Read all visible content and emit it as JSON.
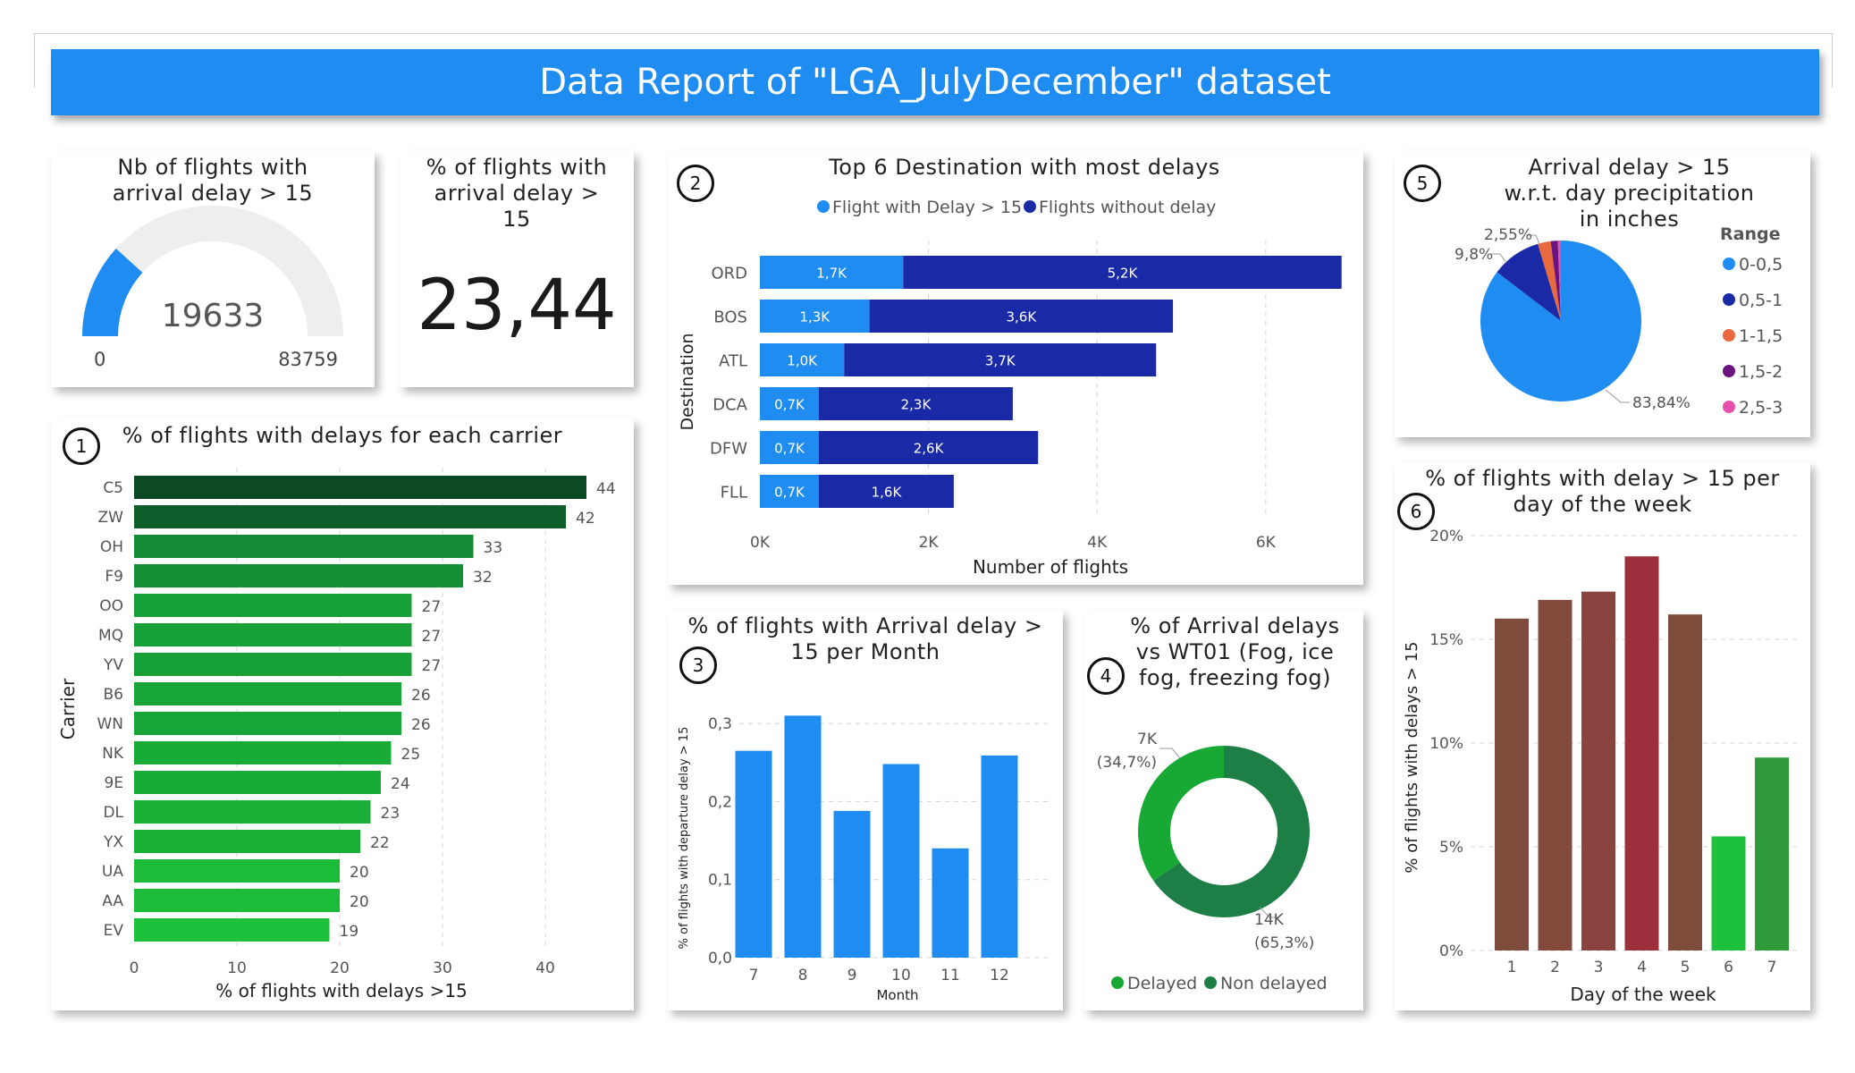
{
  "header": {
    "title": "Data Report of \"LGA_JulyDecember\" dataset"
  },
  "gauge": {
    "title": "Nb of flights with arrival delay > 15",
    "value": "19633",
    "min": "0",
    "max": "83759",
    "fraction": 0.2344
  },
  "kpi": {
    "title": "% of flights with arrival delay > 15",
    "value": "23,44"
  },
  "badges": {
    "b1": "1",
    "b2": "2",
    "b3": "3",
    "b4": "4",
    "b5": "5",
    "b6": "6"
  },
  "carrier": {
    "title": "% of flights with delays for each carrier",
    "xlabel": "% of flights with delays >15",
    "ylabel": "Carrier"
  },
  "dest": {
    "title": "Top 6 Destination with most delays",
    "xlabel": "Number of flights",
    "ylabel": "Destination",
    "legend1": "Flight with Delay > 15",
    "legend2": "Flights without delay"
  },
  "precip": {
    "title": "Arrival delay > 15 w.r.t. day precipitation in inches",
    "legend_title": "Range"
  },
  "month": {
    "title": "% of flights with Arrival delay > 15 per Month",
    "xlabel": "Month",
    "ylabel": "% of flights with departure delay > 15"
  },
  "fog": {
    "title": "% of Arrival delays vs WT01 (Fog, ice fog, freezing fog)",
    "legend1": "Delayed",
    "legend2": "Non delayed"
  },
  "dow": {
    "title": "% of flights with delay > 15 per day of the week",
    "xlabel": "Day of the week",
    "ylabel": "% of flights with delays > 15"
  },
  "chart_data": [
    {
      "id": "carrier",
      "type": "bar",
      "orientation": "horizontal",
      "categories": [
        "C5",
        "ZW",
        "OH",
        "F9",
        "OO",
        "MQ",
        "YV",
        "B6",
        "WN",
        "NK",
        "9E",
        "DL",
        "YX",
        "UA",
        "AA",
        "EV"
      ],
      "values": [
        44,
        42,
        33,
        32,
        27,
        27,
        27,
        26,
        26,
        25,
        24,
        23,
        22,
        20,
        20,
        19
      ],
      "labels": [
        "44",
        "42",
        "33",
        "32",
        "27",
        "27",
        "27",
        "26",
        "26",
        "25",
        "24",
        "23",
        "22",
        "20",
        "20",
        "19"
      ],
      "xticks": [
        "0",
        "10",
        "20",
        "30",
        "40"
      ],
      "xlim": [
        0,
        50
      ],
      "colors": [
        "#0b4a24",
        "#0e5d2b",
        "#138a33",
        "#158f35",
        "#17a035",
        "#17a035",
        "#17a035",
        "#18a537",
        "#18a537",
        "#19ab38",
        "#19ab38",
        "#1ab038",
        "#1ab038",
        "#1cbc3a",
        "#1cbc3a",
        "#1dc13b"
      ],
      "grid": true
    },
    {
      "id": "dest",
      "type": "bar",
      "orientation": "horizontal",
      "stacked": true,
      "categories": [
        "ORD",
        "BOS",
        "ATL",
        "DCA",
        "DFW",
        "FLL"
      ],
      "series": [
        {
          "name": "Flight with Delay > 15",
          "values": [
            1.7,
            1.3,
            1.0,
            0.7,
            0.7,
            0.7
          ],
          "labels": [
            "1,7K",
            "1,3K",
            "1,0K",
            "0,7K",
            "0,7K",
            "0,7K"
          ],
          "color": "#1e8cf0"
        },
        {
          "name": "Flights without delay",
          "values": [
            5.2,
            3.6,
            3.7,
            2.3,
            2.6,
            1.6
          ],
          "labels": [
            "5,2K",
            "3,6K",
            "3,7K",
            "2,3K",
            "2,6K",
            "1,6K"
          ],
          "color": "#1a2aa6"
        }
      ],
      "xticks": [
        "0K",
        "2K",
        "4K",
        "6K"
      ],
      "xlim": [
        0,
        7
      ],
      "grid": true
    },
    {
      "id": "precip",
      "type": "pie",
      "categories": [
        "0-0,5",
        "0,5-1",
        "1-1,5",
        "1,5-2",
        "2,5-3"
      ],
      "values": [
        83.84,
        9.8,
        2.55,
        1.4,
        0.6
      ],
      "labels": [
        "83,84%",
        "9,8%",
        "2,55%"
      ],
      "colors": [
        "#1e8cf0",
        "#1a2aa6",
        "#e8693e",
        "#6b1380",
        "#e54fae"
      ],
      "legend": "right"
    },
    {
      "id": "month",
      "type": "bar",
      "categories": [
        "7",
        "8",
        "9",
        "10",
        "11",
        "12"
      ],
      "values": [
        0.265,
        0.31,
        0.188,
        0.248,
        0.14,
        0.259
      ],
      "yticks": [
        "0,0",
        "0,1",
        "0,2",
        "0,3"
      ],
      "ylim": [
        0,
        0.33
      ],
      "color": "#1e8cf0",
      "grid": true
    },
    {
      "id": "fog",
      "type": "pie",
      "donut": true,
      "categories": [
        "Delayed",
        "Non delayed"
      ],
      "values": [
        34.7,
        65.3
      ],
      "labels": [
        "7K",
        "(34,7%)",
        "14K",
        "(65,3%)"
      ],
      "colors": [
        "#18a935",
        "#1d7f45"
      ],
      "legend": "bottom"
    },
    {
      "id": "dow",
      "type": "bar",
      "categories": [
        "1",
        "2",
        "3",
        "4",
        "5",
        "6",
        "7"
      ],
      "values": [
        16.0,
        16.9,
        17.3,
        19.0,
        16.2,
        5.5,
        9.3
      ],
      "yticks": [
        "0%",
        "5%",
        "10%",
        "15%",
        "20%"
      ],
      "ylim": [
        0,
        20
      ],
      "colors": [
        "#7d4c3a",
        "#834a3b",
        "#8a4440",
        "#9c2f3c",
        "#7d4c3a",
        "#1dc13b",
        "#2f9a3a"
      ],
      "grid": true
    }
  ]
}
